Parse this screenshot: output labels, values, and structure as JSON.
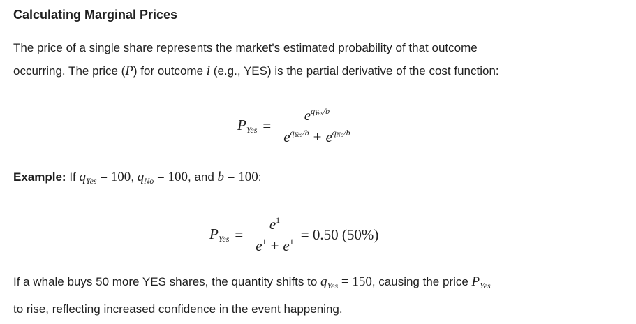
{
  "title": "Calculating Marginal Prices",
  "intro": {
    "line1": "The price of a single share represents the market's estimated probability of that outcome",
    "line2_a": "occurring. The price (",
    "P": "P",
    "line2_b": ") for outcome ",
    "i": "i",
    "line2_c": " (e.g., YES) is the partial derivative of the cost function:"
  },
  "formula1": {
    "lhs": "P",
    "lhs_sub": "Yes",
    "eq": "=",
    "e": "e",
    "exp_num": "q",
    "exp_sub": "Yes",
    "exp_tail": "/b",
    "plus": "+",
    "exp2": "q",
    "exp2_sub": "No",
    "exp2_tail": "/b"
  },
  "example": {
    "label": "Example:",
    "a": " If ",
    "q1": "q",
    "q1_sub": "Yes",
    "v1": " = 100",
    "b": ", ",
    "q2": "q",
    "q2_sub": "No",
    "v2": " = 100",
    "c": ", and ",
    "bvar": "b",
    "v3": " = 100",
    "d": ":"
  },
  "formula2": {
    "lhs": "P",
    "lhs_sub": "Yes",
    "eq": "=",
    "e": "e",
    "one": "1",
    "plus": "+",
    "result": "= 0.50 (50%)"
  },
  "conclusion": {
    "a": "If a whale buys 50 more YES shares, the quantity shifts to ",
    "q": "q",
    "q_sub": "Yes",
    "v": " = 150",
    "b": ", causing the price ",
    "P": "P",
    "P_sub": "Yes",
    "line2": "to rise, reflecting increased confidence in the event happening."
  }
}
